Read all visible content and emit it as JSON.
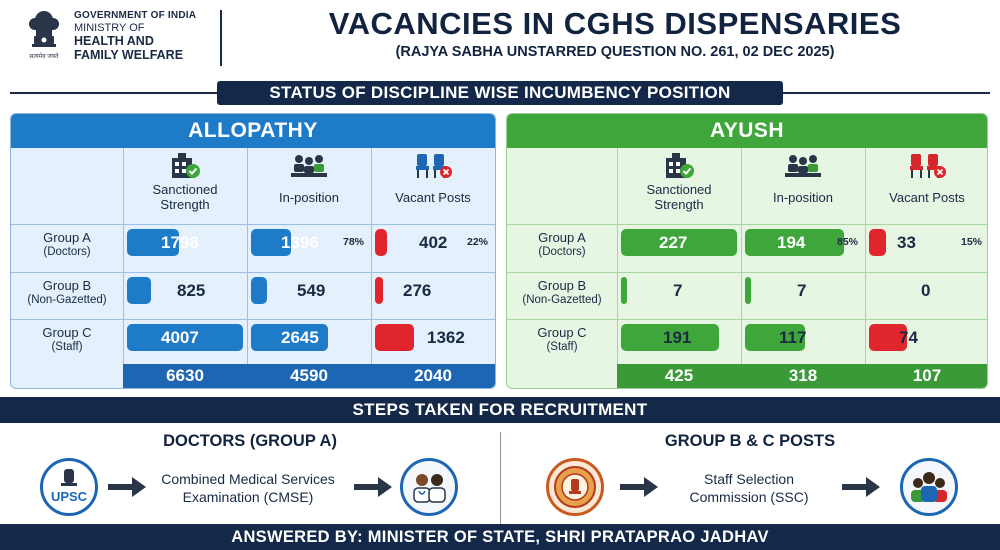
{
  "header": {
    "ministry_line1": "GOVERNMENT OF INDIA",
    "ministry_line2": "MINISTRY OF",
    "ministry_line3": "HEALTH AND",
    "ministry_line4": "FAMILY WELFARE",
    "emblem_motto": "सत्यमेव जयते",
    "title": "VACANCIES IN CGHS DISPENSARIES",
    "subtitle": "(RAJYA SABHA UNSTARRED QUESTION NO. 261, 02 DEC 2025)"
  },
  "status_banner": "STATUS OF DISCIPLINE WISE INCUMBENCY POSITION",
  "column_headers": {
    "sanctioned_1": "Sanctioned",
    "sanctioned_2": "Strength",
    "in_position": "In-position",
    "vacant": "Vacant Posts"
  },
  "row_labels": {
    "a_main": "Group A",
    "a_sub": "(Doctors)",
    "b_main": "Group B",
    "b_sub": "(Non-Gazetted)",
    "c_main": "Group C",
    "c_sub": "(Staff)"
  },
  "colors": {
    "allopathy_accent": "#1d7bc8",
    "ayush_accent": "#3fa63c",
    "vacant_red": "#e0262c",
    "navy": "#14294a"
  },
  "allopathy": {
    "title": "ALLOPATHY",
    "rows": [
      {
        "sanctioned": "1798",
        "in_position": "1396",
        "in_position_pct": "78%",
        "vacant": "402",
        "vacant_pct": "22%"
      },
      {
        "sanctioned": "825",
        "in_position": "549",
        "vacant": "276"
      },
      {
        "sanctioned": "4007",
        "in_position": "2645",
        "vacant": "1362"
      }
    ],
    "totals": {
      "sanctioned": "6630",
      "in_position": "4590",
      "vacant": "2040"
    }
  },
  "ayush": {
    "title": "AYUSH",
    "rows": [
      {
        "sanctioned": "227",
        "in_position": "194",
        "in_position_pct": "85%",
        "vacant": "33",
        "vacant_pct": "15%"
      },
      {
        "sanctioned": "7",
        "in_position": "7",
        "vacant": "0"
      },
      {
        "sanctioned": "191",
        "in_position": "117",
        "vacant": "74"
      }
    ],
    "totals": {
      "sanctioned": "425",
      "in_position": "318",
      "vacant": "107"
    }
  },
  "recruitment": {
    "banner": "STEPS TAKEN FOR RECRUITMENT",
    "doctors": {
      "title": "DOCTORS (GROUP A)",
      "agency_label": "UPSC",
      "agency_icon": "upsc-emblem-icon",
      "step_line1": "Combined Medical Services",
      "step_line2": "Examination (CMSE)",
      "result_icon": "doctors-icon"
    },
    "groupbc": {
      "title": "GROUP B & C POSTS",
      "agency_icon": "ssc-logo-icon",
      "step_line1": "Staff Selection",
      "step_line2": "Commission (SSC)",
      "result_icon": "staff-group-icon"
    }
  },
  "footer": "ANSWERED BY: MINISTER OF STATE, SHRI PRATAPRAO JADHAV"
}
